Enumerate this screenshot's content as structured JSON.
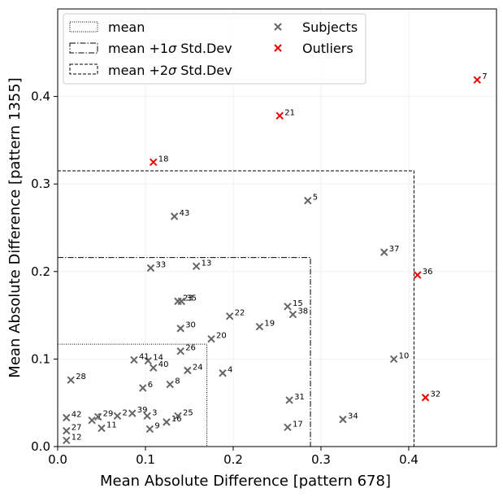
{
  "chart_data": {
    "type": "scatter",
    "title": "",
    "xlabel": "Mean Absolute Difference [pattern 678]",
    "ylabel": "Mean Absolute Difference [pattern 1355]",
    "xlim": [
      0.0,
      0.5
    ],
    "ylim": [
      0.0,
      0.5
    ],
    "xticks": [
      0.0,
      0.1,
      0.2,
      0.3,
      0.4
    ],
    "yticks": [
      0.0,
      0.1,
      0.2,
      0.3,
      0.4
    ],
    "xtick_labels": [
      "0.0",
      "0.1",
      "0.2",
      "0.3",
      "0.4"
    ],
    "ytick_labels": [
      "0.0",
      "0.1",
      "0.2",
      "0.3",
      "0.4"
    ],
    "grid": true,
    "legend_position": "top-left",
    "legend": {
      "mean": "mean",
      "std1_prefix": "mean +1",
      "std2_prefix": "mean +2",
      "sigma": "σ",
      "std_suffix": " Std.Dev",
      "subjects": "Subjects",
      "outliers": "Outliers"
    },
    "colors": {
      "subjects": "#666666",
      "outliers": "#ee0000",
      "frame": "#000000",
      "grid": "#eeeeee"
    },
    "thresholds": [
      {
        "name": "mean",
        "x": 0.17,
        "y": 0.117,
        "style": "dotted"
      },
      {
        "name": "mean +1σ Std.Dev",
        "x": 0.288,
        "y": 0.216,
        "style": "dashdot"
      },
      {
        "name": "mean +2σ Std.Dev",
        "x": 0.406,
        "y": 0.315,
        "style": "dashed"
      }
    ],
    "subjects": [
      {
        "label": "1",
        "x": 0.039,
        "y": 0.03
      },
      {
        "label": "2",
        "x": 0.068,
        "y": 0.035
      },
      {
        "label": "3",
        "x": 0.102,
        "y": 0.035
      },
      {
        "label": "4",
        "x": 0.188,
        "y": 0.084
      },
      {
        "label": "5",
        "x": 0.285,
        "y": 0.281
      },
      {
        "label": "6",
        "x": 0.097,
        "y": 0.067
      },
      {
        "label": "8",
        "x": 0.128,
        "y": 0.071
      },
      {
        "label": "9",
        "x": 0.105,
        "y": 0.02
      },
      {
        "label": "10",
        "x": 0.383,
        "y": 0.1
      },
      {
        "label": "11",
        "x": 0.05,
        "y": 0.021
      },
      {
        "label": "12",
        "x": 0.01,
        "y": 0.007
      },
      {
        "label": "13",
        "x": 0.158,
        "y": 0.206
      },
      {
        "label": "14",
        "x": 0.103,
        "y": 0.098
      },
      {
        "label": "15",
        "x": 0.262,
        "y": 0.16
      },
      {
        "label": "16",
        "x": 0.124,
        "y": 0.028
      },
      {
        "label": "17",
        "x": 0.262,
        "y": 0.022
      },
      {
        "label": "19",
        "x": 0.23,
        "y": 0.137
      },
      {
        "label": "20",
        "x": 0.175,
        "y": 0.123
      },
      {
        "label": "22",
        "x": 0.196,
        "y": 0.149
      },
      {
        "label": "23",
        "x": 0.137,
        "y": 0.166
      },
      {
        "label": "24",
        "x": 0.148,
        "y": 0.087
      },
      {
        "label": "25",
        "x": 0.137,
        "y": 0.035
      },
      {
        "label": "26",
        "x": 0.14,
        "y": 0.109
      },
      {
        "label": "27",
        "x": 0.01,
        "y": 0.018
      },
      {
        "label": "28",
        "x": 0.015,
        "y": 0.076
      },
      {
        "label": "29",
        "x": 0.046,
        "y": 0.034
      },
      {
        "label": "30",
        "x": 0.14,
        "y": 0.135
      },
      {
        "label": "31",
        "x": 0.264,
        "y": 0.053
      },
      {
        "label": "33",
        "x": 0.106,
        "y": 0.204
      },
      {
        "label": "34",
        "x": 0.325,
        "y": 0.031
      },
      {
        "label": "35",
        "x": 0.141,
        "y": 0.166
      },
      {
        "label": "37",
        "x": 0.372,
        "y": 0.222
      },
      {
        "label": "38",
        "x": 0.268,
        "y": 0.151
      },
      {
        "label": "39",
        "x": 0.085,
        "y": 0.038
      },
      {
        "label": "40",
        "x": 0.109,
        "y": 0.09
      },
      {
        "label": "41",
        "x": 0.087,
        "y": 0.099
      },
      {
        "label": "42",
        "x": 0.01,
        "y": 0.033
      },
      {
        "label": "43",
        "x": 0.133,
        "y": 0.263
      }
    ],
    "outliers": [
      {
        "label": "7",
        "x": 0.478,
        "y": 0.419
      },
      {
        "label": "18",
        "x": 0.109,
        "y": 0.325
      },
      {
        "label": "21",
        "x": 0.253,
        "y": 0.378
      },
      {
        "label": "32",
        "x": 0.419,
        "y": 0.056
      },
      {
        "label": "36",
        "x": 0.41,
        "y": 0.196
      }
    ]
  }
}
